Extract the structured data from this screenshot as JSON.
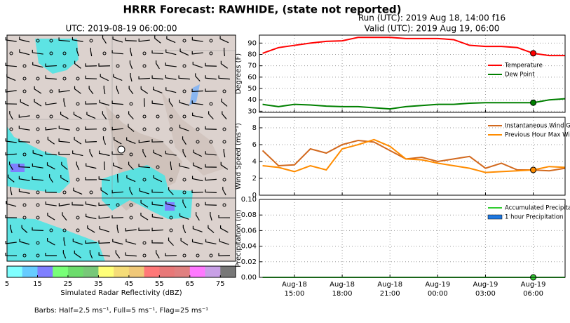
{
  "header": {
    "title": "HRRR Forecast: RAWHIDE, (state not reported)",
    "run": "Run (UTC): 2019 Aug 18, 14:00 f16",
    "valid": "Valid (UTC): 2019 Aug 19, 06:00"
  },
  "map": {
    "title": "UTC: 2019-08-19 06:00:00",
    "colorbar": {
      "label": "Simulated Radar Reflectivity (dBZ)",
      "lim": [
        5,
        80
      ],
      "colors": [
        "#7fffff",
        "#66ccff",
        "#7f7fff",
        "#78ff78",
        "#6cdc6c",
        "#78c878",
        "#ffff78",
        "#f5dc78",
        "#f0c878",
        "#ff7878",
        "#e87878",
        "#e08080",
        "#ff78ff",
        "#c8a0e6",
        "#787878"
      ],
      "ticks": [
        5,
        15,
        25,
        35,
        45,
        55,
        65,
        75
      ]
    },
    "note": "Barbs: Half=2.5 ms⁻¹, Full=5 ms⁻¹, Flag=25 ms⁻¹"
  },
  "chart_data": {
    "type": "line",
    "x": [
      13,
      14,
      15,
      16,
      17,
      18,
      19,
      20,
      21,
      22,
      23,
      24,
      25,
      26,
      27,
      28,
      29,
      30,
      31,
      32
    ],
    "xlim": [
      12.8,
      32
    ],
    "xticks": [
      {
        "value": 15,
        "label": "Aug-18 15:00"
      },
      {
        "value": 18,
        "label": "Aug-18 18:00"
      },
      {
        "value": 21,
        "label": "Aug-18 21:00"
      },
      {
        "value": 24,
        "label": "Aug-19 00:00"
      },
      {
        "value": 27,
        "label": "Aug-19 03:00"
      },
      {
        "value": 30,
        "label": "Aug-19 06:00"
      }
    ],
    "highlight_x": 30,
    "grid": true,
    "panels": [
      {
        "ylabel": "Degrees (F)",
        "ylim": [
          29,
          97
        ],
        "yticks": [
          30,
          40,
          50,
          60,
          70,
          80,
          90
        ],
        "legend": "center right",
        "series": [
          {
            "name": "Temperature",
            "color": "#ff0000",
            "values": [
              81,
              86,
              88,
              90,
              91.5,
              92,
              95,
              95,
              95,
              94,
              94,
              94,
              93,
              88,
              87,
              87,
              86,
              81,
              79,
              79
            ]
          },
          {
            "name": "Dew Point",
            "color": "#008000",
            "values": [
              36,
              34,
              36,
              35.5,
              34.5,
              34,
              34,
              33,
              32,
              34,
              35,
              36,
              36,
              37,
              37.5,
              37.5,
              37.5,
              37.5,
              40,
              41
            ]
          }
        ]
      },
      {
        "ylabel": "Wind Speed (ms⁻¹)",
        "ylim": [
          0,
          9.25
        ],
        "yticks": [
          0,
          2,
          4,
          6,
          8
        ],
        "legend": "upper right",
        "series": [
          {
            "name": "Instantaneous Wind Gust",
            "color": "#d2691e",
            "values": [
              5.3,
              3.5,
              3.6,
              5.5,
              5.0,
              6.0,
              6.5,
              6.3,
              5.3,
              4.3,
              4.5,
              4.0,
              4.3,
              4.6,
              3.2,
              3.8,
              3.0,
              3.0,
              2.9,
              3.2
            ]
          },
          {
            "name": "Previous Hour Max Wind",
            "color": "#ff8c00",
            "values": [
              3.5,
              3.3,
              2.8,
              3.5,
              3.0,
              5.5,
              6.0,
              6.6,
              5.8,
              4.3,
              4.2,
              3.8,
              3.5,
              3.2,
              2.7,
              2.8,
              2.9,
              3.0,
              3.4,
              3.3
            ]
          }
        ]
      },
      {
        "ylabel": "Precipitation (in)",
        "ylim": [
          0,
          0.1
        ],
        "yticks": [
          {
            "value": 0,
            "label": "0.00"
          },
          {
            "value": 0.02,
            "label": "0.02"
          },
          {
            "value": 0.04,
            "label": "0.04"
          },
          {
            "value": 0.06,
            "label": "0.06"
          },
          {
            "value": 0.08,
            "label": "0.08"
          },
          {
            "value": 0.1,
            "label": "0.10"
          }
        ],
        "legend": "upper right",
        "series": [
          {
            "name": "Accumulated Precipitation",
            "type": "line",
            "color": "#32cd32",
            "values": [
              0,
              0,
              0,
              0,
              0,
              0,
              0,
              0,
              0,
              0,
              0,
              0,
              0,
              0,
              0,
              0,
              0,
              0,
              0,
              0
            ]
          },
          {
            "name": "1 hour Precipitation",
            "type": "bar",
            "color": "#1f78e0",
            "values": [
              0,
              0,
              0,
              0,
              0,
              0,
              0,
              0,
              0,
              0,
              0,
              0,
              0,
              0,
              0,
              0,
              0,
              0,
              0,
              0
            ]
          }
        ]
      }
    ]
  }
}
